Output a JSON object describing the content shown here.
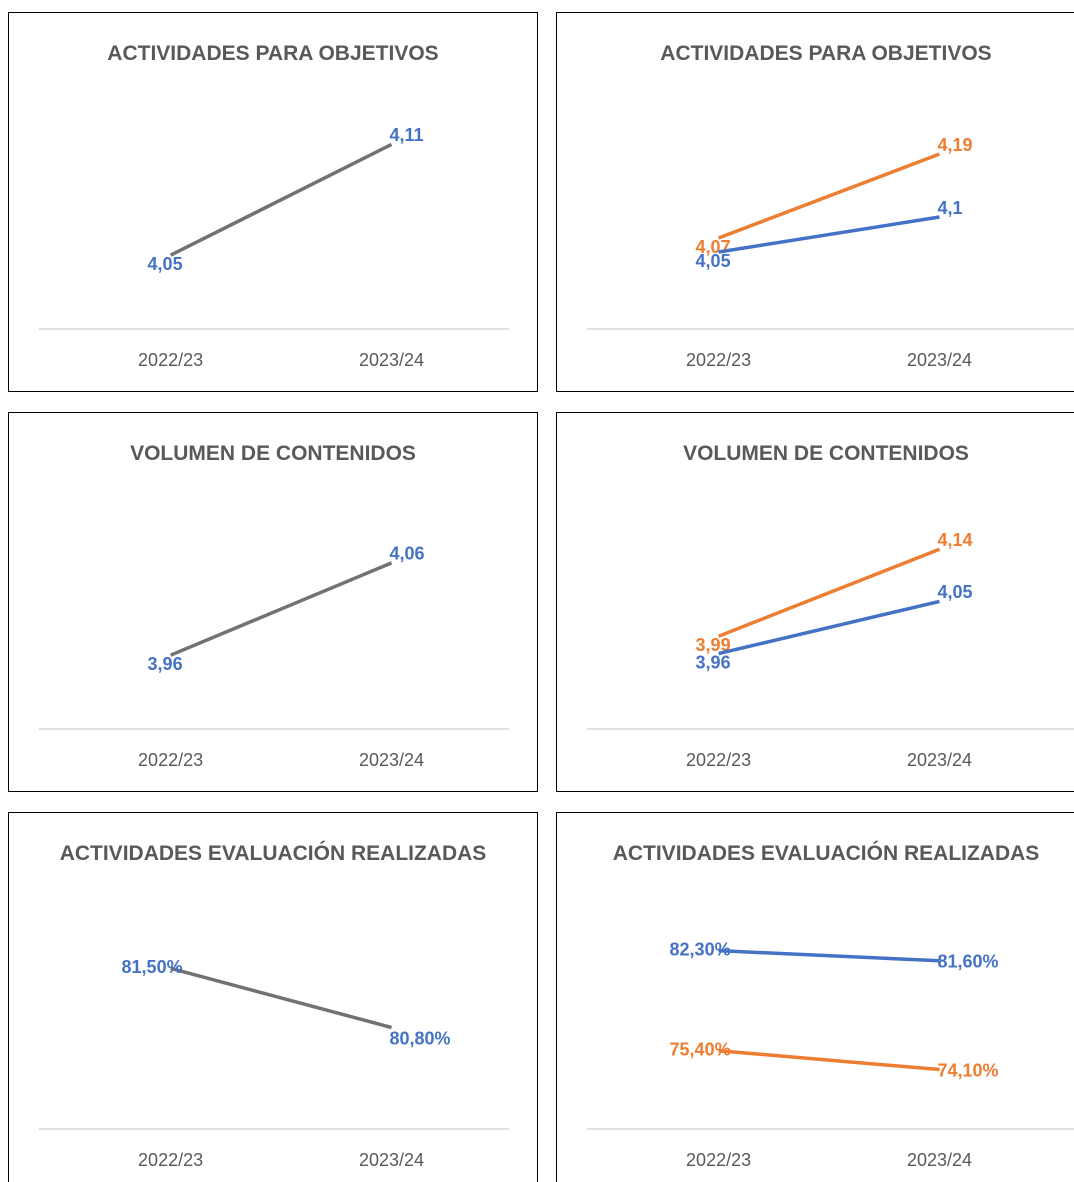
{
  "chart_data": [
    {
      "type": "line",
      "title": "ACTIVIDADES PARA OBJETIVOS",
      "categories": [
        "2022/23",
        "2023/24"
      ],
      "ylim": [
        4.01,
        4.12
      ],
      "series": [
        {
          "color": "#767171",
          "label_color": "#4472c4",
          "values": [
            4.05,
            4.11
          ],
          "value_labels": [
            "4,05",
            "4,11"
          ]
        }
      ]
    },
    {
      "type": "line",
      "title": "ACTIVIDADES PARA OBJETIVOS",
      "categories": [
        "2022/23",
        "2023/24"
      ],
      "ylim": [
        3.94,
        4.23
      ],
      "series": [
        {
          "color": "#ed7d31",
          "label_color": "#ed7d31",
          "values": [
            4.07,
            4.19
          ],
          "value_labels": [
            "4,07",
            "4,19"
          ]
        },
        {
          "color": "#4472c4",
          "label_color": "#4472c4",
          "values": [
            4.05,
            4.1
          ],
          "value_labels": [
            "4,05",
            "4,1"
          ]
        }
      ]
    },
    {
      "type": "line",
      "title": "VOLUMEN DE CONTENIDOS",
      "categories": [
        "2022/23",
        "2023/24"
      ],
      "ylim": [
        3.88,
        4.1
      ],
      "series": [
        {
          "color": "#767171",
          "label_color": "#4472c4",
          "values": [
            3.96,
            4.06
          ],
          "value_labels": [
            "3,96",
            "4,06"
          ]
        }
      ]
    },
    {
      "type": "line",
      "title": "VOLUMEN DE CONTENIDOS",
      "categories": [
        "2022/23",
        "2023/24"
      ],
      "ylim": [
        3.83,
        4.18
      ],
      "series": [
        {
          "color": "#ed7d31",
          "label_color": "#ed7d31",
          "values": [
            3.99,
            4.14
          ],
          "value_labels": [
            "3,99",
            "4,14"
          ]
        },
        {
          "color": "#4472c4",
          "label_color": "#4472c4",
          "values": [
            3.96,
            4.05
          ],
          "value_labels": [
            "3,96",
            "4,05"
          ]
        }
      ]
    },
    {
      "type": "line",
      "title": "ACTIVIDADES EVALUACIÓN REALIZADAS",
      "categories": [
        "2022/23",
        "2023/24"
      ],
      "ylim": [
        79.6,
        82
      ],
      "series": [
        {
          "color": "#767171",
          "label_color": "#4472c4",
          "values": [
            81.5,
            80.8
          ],
          "value_labels": [
            "81,50%",
            "80,80%"
          ]
        }
      ]
    },
    {
      "type": "line",
      "title": "ACTIVIDADES EVALUACIÓN REALIZADAS",
      "categories": [
        "2022/23",
        "2023/24"
      ],
      "ylim": [
        70,
        84
      ],
      "series": [
        {
          "color": "#4472c4",
          "label_color": "#4472c4",
          "values": [
            82.3,
            81.6
          ],
          "value_labels": [
            "82,30%",
            "81,60%"
          ]
        },
        {
          "color": "#ed7d31",
          "label_color": "#ed7d31",
          "values": [
            75.4,
            74.1
          ],
          "value_labels": [
            "75,40%",
            "74,10%"
          ]
        }
      ]
    }
  ]
}
